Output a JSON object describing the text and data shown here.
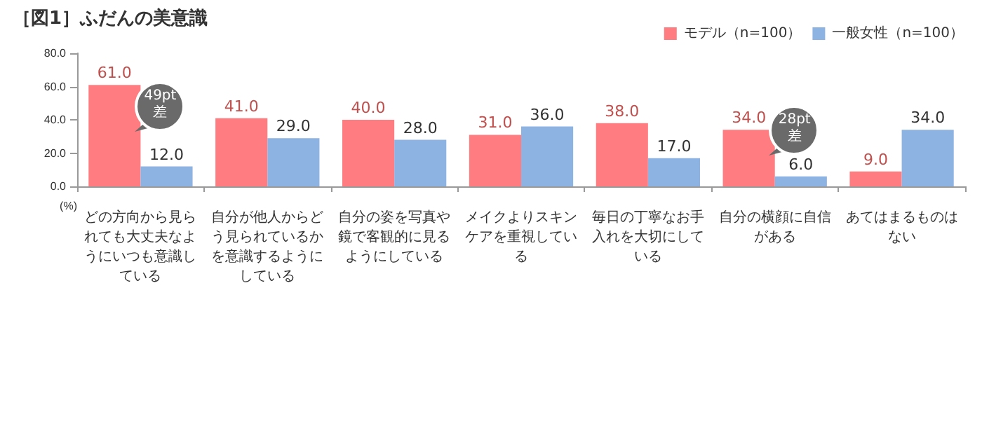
{
  "chart_data": {
    "type": "bar",
    "title": "［図1］ふだんの美意識",
    "ylabel": "(%)",
    "categories": [
      "どの方向から見られても大丈夫なようにいつも意識している",
      "自分が他人からどう見られているかを意識するようにしている",
      "自分の姿を写真や鏡で客観的に見るようにしている",
      "メイクよりスキンケアを重視している",
      "毎日の丁寧なお手入れを大切にしている",
      "自分の横顔に自信がある",
      "あてはまるものはない"
    ],
    "series": [
      {
        "name": "モデル（n=100）",
        "color": "#ff7c80",
        "values": [
          61,
          41,
          40,
          31,
          38,
          34,
          9
        ],
        "value_labels": [
          "61.0",
          "41.0",
          "40.0",
          "31.0",
          "38.0",
          "34.0",
          "9.0"
        ]
      },
      {
        "name": "一般女性（n=100）",
        "color": "#8db3e2",
        "values": [
          12,
          29,
          28,
          36,
          17,
          6,
          34
        ],
        "value_labels": [
          "12.0",
          "29.0",
          "28.0",
          "36.0",
          "17.0",
          "6.0",
          "34.0"
        ]
      }
    ],
    "ylim": [
      0,
      80
    ],
    "yticks": [
      {
        "value": 0,
        "label": "0.0"
      },
      {
        "value": 20,
        "label": "20.0"
      },
      {
        "value": 40,
        "label": "40.0"
      },
      {
        "value": 60,
        "label": "60.0"
      },
      {
        "value": 80,
        "label": "80.0"
      }
    ],
    "grid": false,
    "legend": "top right",
    "annotations": [
      {
        "text": "49pt\n差",
        "x": "どの方向から見られても大丈夫なようにいつも意識している",
        "y": 48
      },
      {
        "text": "28pt\n差",
        "x": "自分の横顔に自信がある",
        "y": 34
      }
    ]
  }
}
